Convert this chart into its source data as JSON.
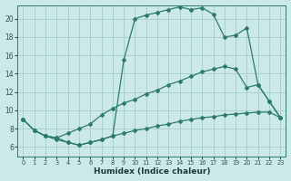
{
  "xlabel": "Humidex (Indice chaleur)",
  "xlim": [
    -0.5,
    23.5
  ],
  "ylim": [
    5.0,
    21.5
  ],
  "yticks": [
    6,
    8,
    10,
    12,
    14,
    16,
    18,
    20
  ],
  "xticks": [
    0,
    1,
    2,
    3,
    4,
    5,
    6,
    7,
    8,
    9,
    10,
    11,
    12,
    13,
    14,
    15,
    16,
    17,
    18,
    19,
    20,
    21,
    22,
    23
  ],
  "bg_color": "#cce9e9",
  "grid_color": "#aad0d0",
  "line_color": "#2d7a6e",
  "line1_x": [
    0,
    1,
    2,
    3,
    4,
    5,
    6,
    7,
    8,
    9,
    10,
    11,
    12,
    13,
    14,
    15,
    16,
    17,
    18,
    19,
    20,
    21,
    22,
    23
  ],
  "line1_y": [
    9.0,
    7.8,
    7.2,
    6.8,
    6.5,
    6.2,
    6.5,
    6.8,
    7.2,
    15.5,
    20.0,
    20.4,
    20.7,
    21.0,
    21.3,
    21.0,
    21.2,
    20.5,
    18.0,
    18.2,
    19.0,
    12.8,
    11.0,
    9.2
  ],
  "line2_x": [
    0,
    1,
    2,
    3,
    4,
    5,
    6,
    7,
    8,
    9,
    10,
    11,
    12,
    13,
    14,
    15,
    16,
    17,
    18,
    19,
    20,
    21,
    22,
    23
  ],
  "line2_y": [
    9.0,
    7.8,
    7.2,
    7.0,
    7.5,
    8.0,
    8.5,
    9.5,
    10.2,
    10.8,
    11.2,
    11.8,
    12.2,
    12.8,
    13.2,
    13.7,
    14.2,
    14.5,
    14.8,
    14.5,
    12.5,
    12.8,
    11.0,
    9.2
  ],
  "line3_x": [
    0,
    1,
    2,
    3,
    4,
    5,
    6,
    7,
    8,
    9,
    10,
    11,
    12,
    13,
    14,
    15,
    16,
    17,
    18,
    19,
    20,
    21,
    22,
    23
  ],
  "line3_y": [
    9.0,
    7.8,
    7.2,
    7.0,
    6.5,
    6.2,
    6.5,
    6.8,
    7.2,
    7.5,
    7.8,
    8.0,
    8.3,
    8.5,
    8.8,
    9.0,
    9.2,
    9.3,
    9.5,
    9.6,
    9.7,
    9.8,
    9.8,
    9.2
  ]
}
